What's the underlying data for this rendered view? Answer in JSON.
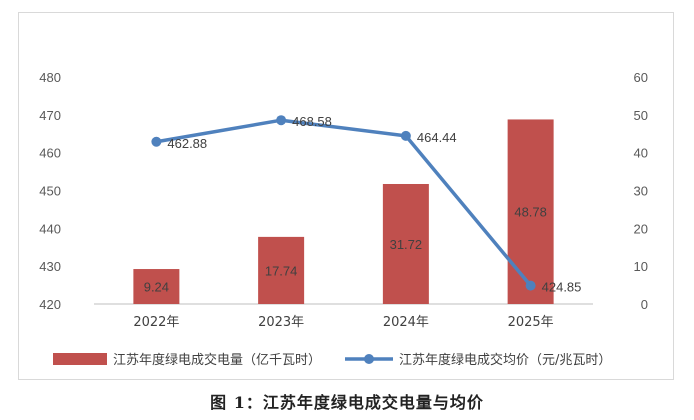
{
  "caption": "图 1：江苏年度绿电成交电量与均价",
  "chart_data": {
    "type": "bar",
    "categories": [
      "2022年",
      "2023年",
      "2024年",
      "2025年"
    ],
    "series": [
      {
        "name": "江苏年度绿电成交电量（亿千瓦时）",
        "type": "bar",
        "axis": "right",
        "color": "#c0504d",
        "values": [
          9.24,
          17.74,
          31.72,
          48.78
        ],
        "labels": [
          "9.24",
          "17.74",
          "31.72",
          "48.78"
        ]
      },
      {
        "name": "江苏年度绿电成交均价（元/兆瓦时）",
        "type": "line",
        "axis": "left",
        "color": "#4f81bd",
        "values": [
          462.88,
          468.58,
          464.44,
          424.85
        ],
        "labels": [
          "462.88",
          "468.58",
          "464.44",
          "424.85"
        ]
      }
    ],
    "y_left": {
      "range": [
        420,
        480
      ],
      "ticks": [
        "420",
        "430",
        "440",
        "450",
        "460",
        "470",
        "480"
      ]
    },
    "y_right": {
      "range": [
        0,
        60
      ],
      "ticks": [
        "0",
        "10",
        "20",
        "30",
        "40",
        "50",
        "60"
      ]
    },
    "legend_position": "bottom",
    "grid": false
  }
}
